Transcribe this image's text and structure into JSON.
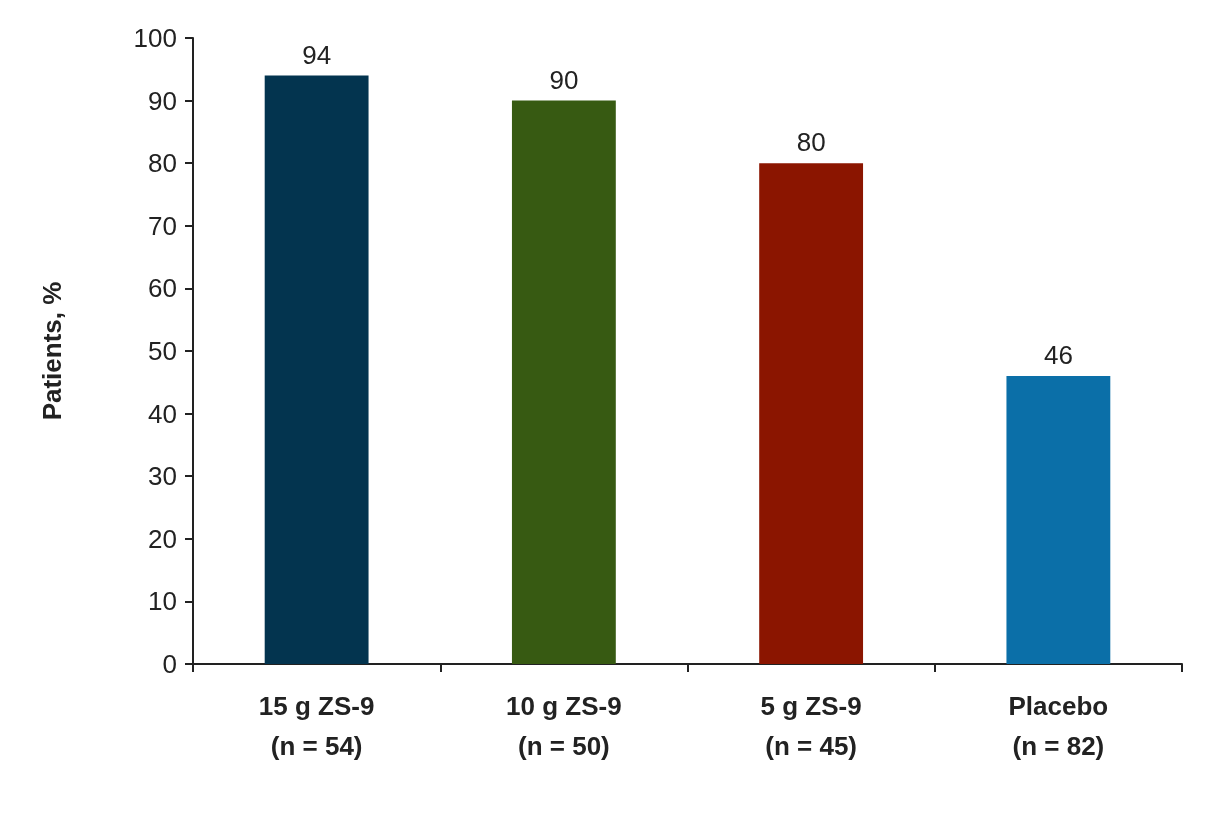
{
  "chart_data": {
    "type": "bar",
    "ylabel": "Patients, %",
    "categories": [
      "15 g ZS-9\n(n = 54)",
      "10 g ZS-9\n(n = 50)",
      "5 g ZS-9\n(n = 45)",
      "Placebo\n(n = 82)"
    ],
    "values": [
      94,
      90,
      80,
      46
    ],
    "colors": [
      "#03344f",
      "#375a12",
      "#8b1500",
      "#0b6fa8"
    ],
    "ylim": [
      0,
      100
    ],
    "yticks": [
      0,
      10,
      20,
      30,
      40,
      50,
      60,
      70,
      80,
      90,
      100
    ],
    "grid": false,
    "data_labels": true
  }
}
